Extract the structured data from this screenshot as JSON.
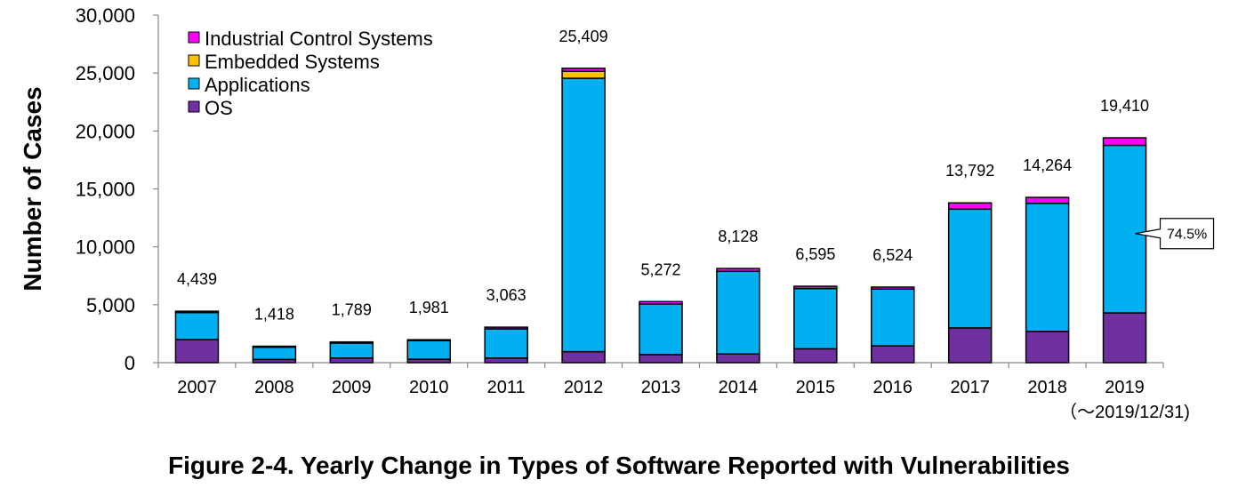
{
  "caption": "Figure 2-4. Yearly Change in Types of Software Reported with Vulnerabilities",
  "colors": {
    "OS": "#7030A0",
    "Applications": "#00B0F0",
    "Embedded Systems": "#FFC000",
    "Industrial Control Systems": "#FF00FF"
  },
  "chart_data": {
    "type": "bar",
    "stacked": true,
    "title": "Figure 2-4. Yearly Change in Types of Software Reported with Vulnerabilities",
    "xlabel": "",
    "ylabel": "Number of Cases",
    "ylim": [
      0,
      30000
    ],
    "yticks": [
      "0",
      "5,000",
      "10,000",
      "15,000",
      "20,000",
      "25,000",
      "30,000"
    ],
    "categories": [
      "2007",
      "2008",
      "2009",
      "2010",
      "2011",
      "2012",
      "2013",
      "2014",
      "2015",
      "2016",
      "2017",
      "2018",
      "2019"
    ],
    "category_sublabel": {
      "index": 12,
      "text": "（～2019/12/31)"
    },
    "legend_position": "top-left",
    "legend_order": [
      "Industrial Control Systems",
      "Embedded Systems",
      "Applications",
      "OS"
    ],
    "series": [
      {
        "name": "OS",
        "values": [
          2000,
          280,
          400,
          300,
          400,
          950,
          700,
          750,
          1200,
          1450,
          3000,
          2700,
          4300
        ]
      },
      {
        "name": "Applications",
        "values": [
          2320,
          1060,
          1290,
          1600,
          2520,
          23600,
          4370,
          7130,
          5200,
          4900,
          10250,
          11050,
          14460
        ]
      },
      {
        "name": "Embedded Systems",
        "values": [
          0,
          0,
          0,
          0,
          0,
          600,
          0,
          0,
          0,
          0,
          0,
          0,
          0
        ]
      },
      {
        "name": "Industrial Control Systems",
        "values": [
          119,
          78,
          99,
          81,
          143,
          259,
          202,
          248,
          195,
          174,
          542,
          514,
          650
        ]
      }
    ],
    "totals": [
      "4,439",
      "1,418",
      "1,789",
      "1,981",
      "3,063",
      "25,409",
      "5,272",
      "8,128",
      "6,595",
      "6,524",
      "13,792",
      "14,264",
      "19,410"
    ],
    "annotation": {
      "text": "74.5%",
      "category": "2019",
      "series": "Applications"
    }
  }
}
